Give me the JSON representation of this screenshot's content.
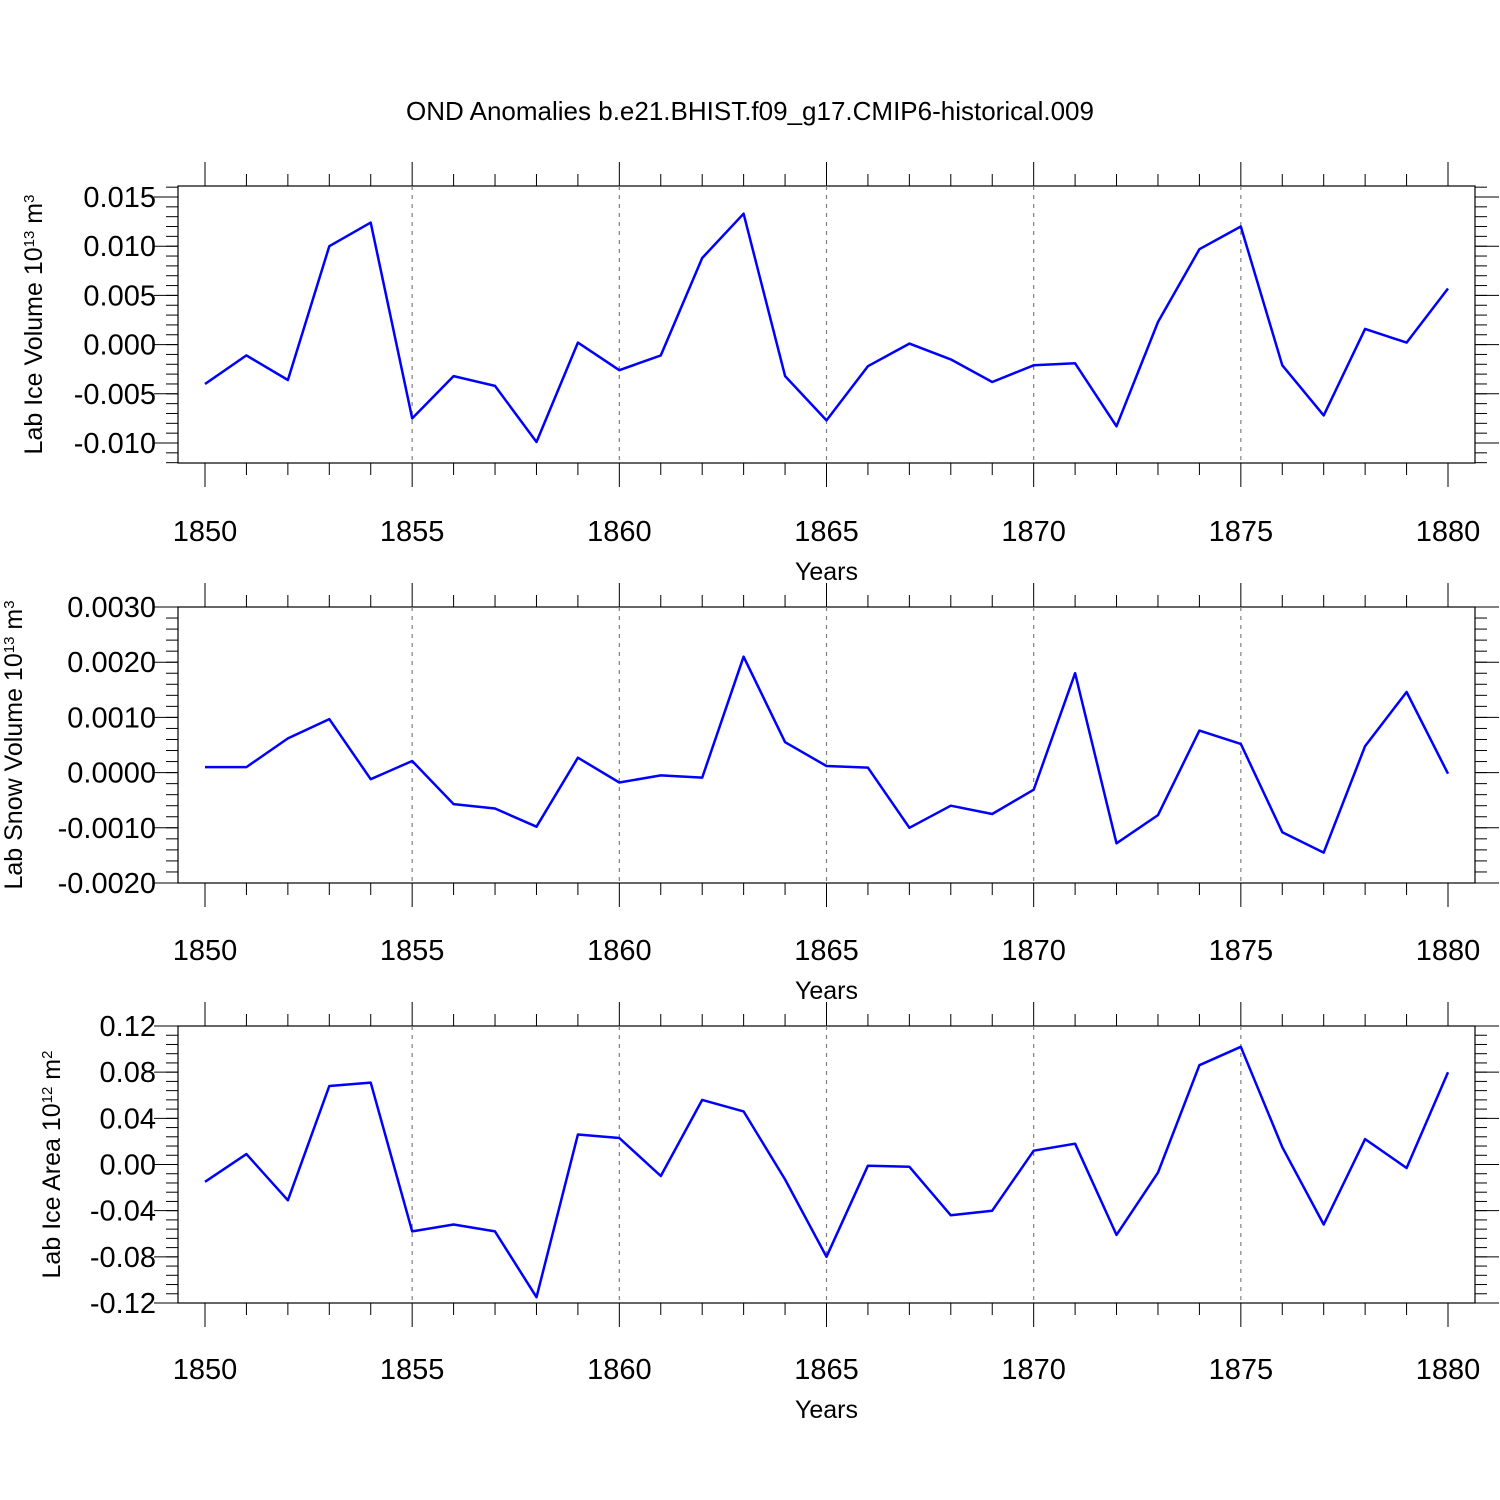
{
  "title": "OND Anomalies b.e21.BHIST.f09_g17.CMIP6-historical.009",
  "colors": {
    "line": "#0000ff",
    "axis": "#000000",
    "grid": "#808080"
  },
  "chart_data": [
    {
      "type": "line",
      "xlabel": "Years",
      "ylabel": "Lab Ice Volume 10",
      "ylabel_sup_exp": "13",
      "ylabel_unit": "m",
      "ylabel_unit_sup": "3",
      "xlim": [
        1850,
        1880
      ],
      "ylim": [
        -0.012,
        0.016
      ],
      "xticks": [
        "1850",
        "1855",
        "1860",
        "1865",
        "1870",
        "1875",
        "1880"
      ],
      "yticks": [
        "0.015",
        "0.010",
        "0.005",
        "0.000",
        "-0.005",
        "-0.010"
      ],
      "vertical_grid": true,
      "x": [
        1850,
        1851,
        1852,
        1853,
        1854,
        1855,
        1856,
        1857,
        1858,
        1859,
        1860,
        1861,
        1862,
        1863,
        1864,
        1865,
        1866,
        1867,
        1868,
        1869,
        1870,
        1871,
        1872,
        1873,
        1874,
        1875,
        1876,
        1877,
        1878,
        1879,
        1880
      ],
      "values": [
        -0.004,
        -0.0011,
        -0.0036,
        0.01,
        0.0124,
        -0.0075,
        -0.0032,
        -0.0042,
        -0.0099,
        0.0002,
        -0.0026,
        -0.0011,
        0.0088,
        0.0133,
        -0.0032,
        -0.0077,
        -0.0022,
        0.0001,
        -0.0015,
        -0.0038,
        -0.0021,
        -0.0019,
        -0.0083,
        0.0023,
        0.0097,
        0.012,
        -0.0021,
        -0.0072,
        0.0016,
        0.0002,
        0.0057
      ]
    },
    {
      "type": "line",
      "xlabel": "Years",
      "ylabel": "Lab Snow Volume 10",
      "ylabel_sup_exp": "13",
      "ylabel_unit": "m",
      "ylabel_unit_sup": "3",
      "xlim": [
        1850,
        1880
      ],
      "ylim": [
        -0.002,
        0.003
      ],
      "xticks": [
        "1850",
        "1855",
        "1860",
        "1865",
        "1870",
        "1875",
        "1880"
      ],
      "yticks": [
        "0.0030",
        "0.0020",
        "0.0010",
        "0.0000",
        "-0.0010",
        "-0.0020"
      ],
      "vertical_grid": true,
      "x": [
        1850,
        1851,
        1852,
        1853,
        1854,
        1855,
        1856,
        1857,
        1858,
        1859,
        1860,
        1861,
        1862,
        1863,
        1864,
        1865,
        1866,
        1867,
        1868,
        1869,
        1870,
        1871,
        1872,
        1873,
        1874,
        1875,
        1876,
        1877,
        1878,
        1879,
        1880
      ],
      "values": [
        0.0001,
        0.0001,
        0.00062,
        0.00097,
        -0.00012,
        0.00021,
        -0.00057,
        -0.00065,
        -0.00098,
        0.00027,
        -0.00018,
        -5e-05,
        -9e-05,
        0.0021,
        0.00055,
        0.00012,
        9e-05,
        -0.001,
        -0.0006,
        -0.00075,
        -0.00031,
        0.0018,
        -0.00128,
        -0.00077,
        0.00076,
        0.00052,
        -0.00108,
        -0.00145,
        0.00048,
        0.00146,
        -2e-05
      ]
    },
    {
      "type": "line",
      "xlabel": "Years",
      "ylabel": "Lab Ice Area 10",
      "ylabel_sup_exp": "12",
      "ylabel_unit": "m",
      "ylabel_unit_sup": "2",
      "xlim": [
        1850,
        1880
      ],
      "ylim": [
        -0.12,
        0.12
      ],
      "xticks": [
        "1850",
        "1855",
        "1860",
        "1865",
        "1870",
        "1875",
        "1880"
      ],
      "yticks": [
        "0.12",
        "0.08",
        "0.04",
        "0.00",
        "-0.04",
        "-0.08",
        "-0.12"
      ],
      "vertical_grid": true,
      "x": [
        1850,
        1851,
        1852,
        1853,
        1854,
        1855,
        1856,
        1857,
        1858,
        1859,
        1860,
        1861,
        1862,
        1863,
        1864,
        1865,
        1866,
        1867,
        1868,
        1869,
        1870,
        1871,
        1872,
        1873,
        1874,
        1875,
        1876,
        1877,
        1878,
        1879,
        1880
      ],
      "values": [
        -0.015,
        0.009,
        -0.031,
        0.068,
        0.071,
        -0.058,
        -0.052,
        -0.058,
        -0.115,
        0.026,
        0.023,
        -0.01,
        0.056,
        0.046,
        -0.013,
        -0.08,
        -0.001,
        -0.002,
        -0.044,
        -0.04,
        0.012,
        0.018,
        -0.061,
        -0.007,
        0.086,
        0.102,
        0.015,
        -0.052,
        0.022,
        -0.003,
        0.08
      ]
    }
  ]
}
